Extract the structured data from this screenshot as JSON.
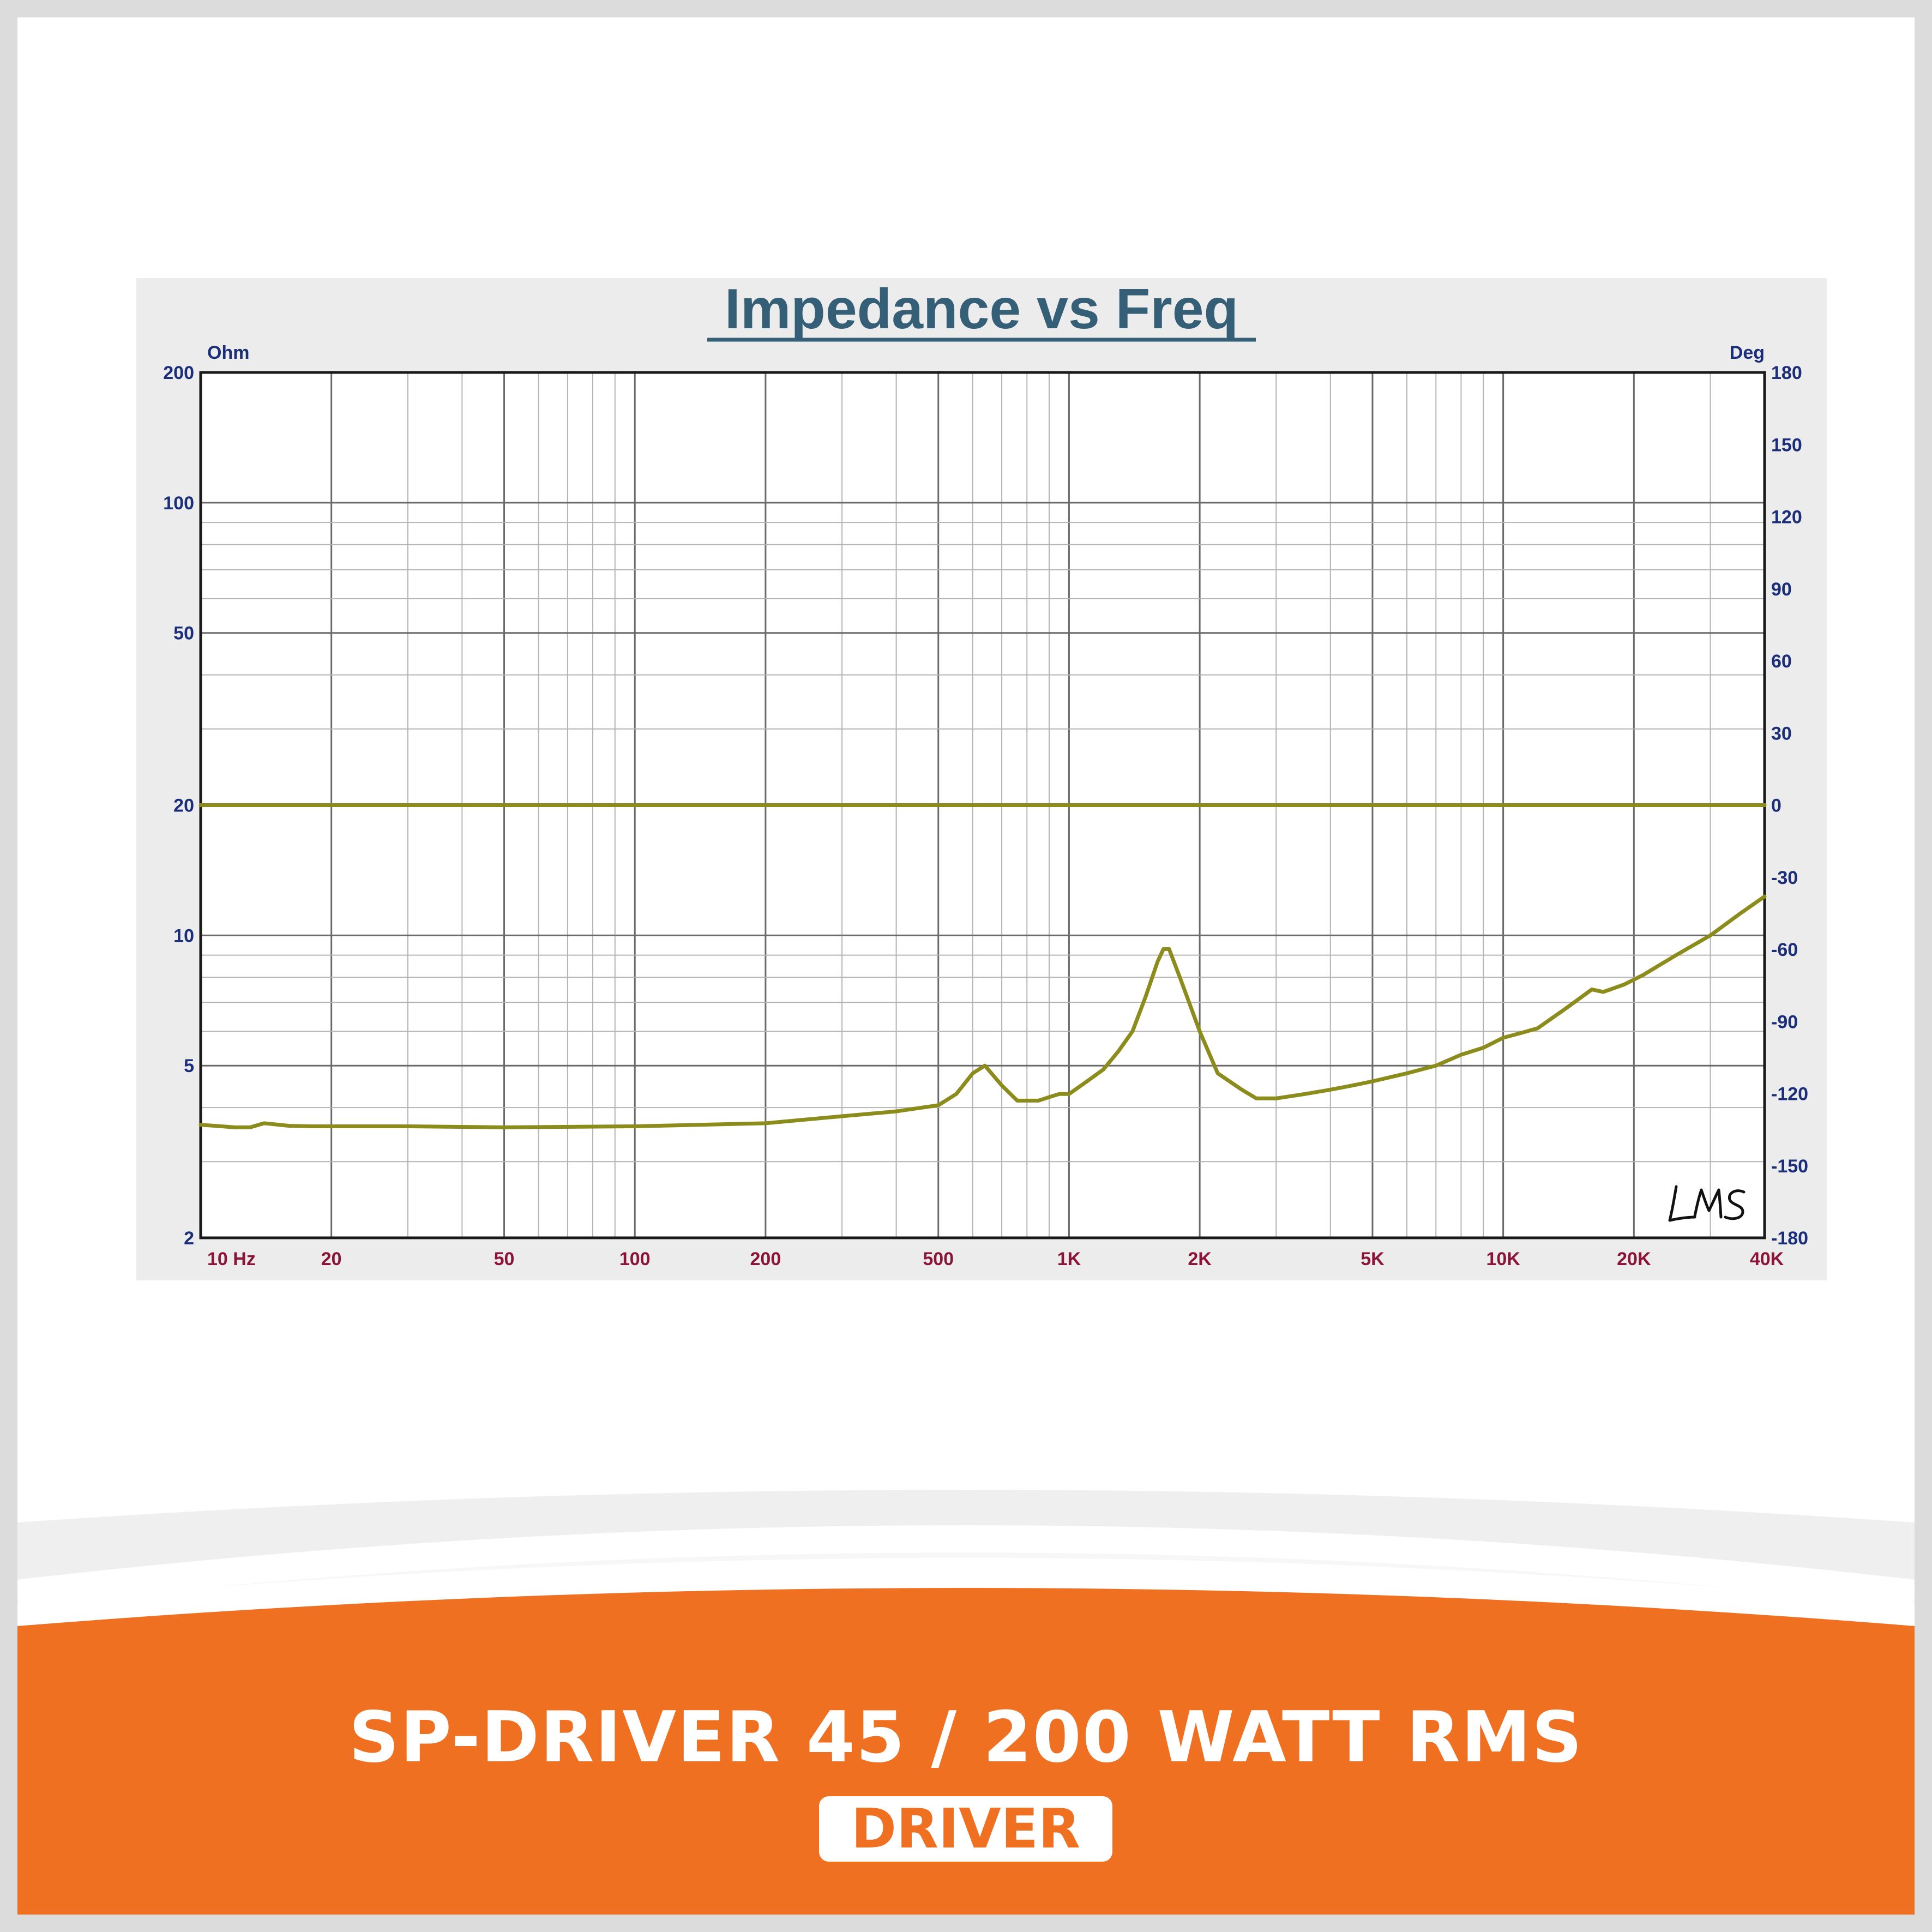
{
  "colors": {
    "accent": "#f07022",
    "curve": "#8c8c1c",
    "axis_label": "#1b2e7a",
    "freq_label": "#8a1538",
    "title": "#355f77"
  },
  "chart_data": {
    "type": "line",
    "title": "Impedance vs Freq",
    "left_unit": "Ohm",
    "right_unit": "Deg",
    "x_scale": "log",
    "y_scale": "log",
    "xlim": [
      10,
      40000
    ],
    "ylim": [
      2,
      200
    ],
    "y2lim": [
      -180,
      180
    ],
    "grid": true,
    "x_ticks": [
      {
        "value": 10,
        "label": "10  Hz"
      },
      {
        "value": 20,
        "label": "20"
      },
      {
        "value": 50,
        "label": "50"
      },
      {
        "value": 100,
        "label": "100"
      },
      {
        "value": 200,
        "label": "200"
      },
      {
        "value": 500,
        "label": "500"
      },
      {
        "value": 1000,
        "label": "1K"
      },
      {
        "value": 2000,
        "label": "2K"
      },
      {
        "value": 5000,
        "label": "5K"
      },
      {
        "value": 10000,
        "label": "10K"
      },
      {
        "value": 20000,
        "label": "20K"
      },
      {
        "value": 40000,
        "label": "40K"
      }
    ],
    "y_ticks": [
      {
        "value": 200,
        "label": "200"
      },
      {
        "value": 100,
        "label": "100"
      },
      {
        "value": 50,
        "label": "50"
      },
      {
        "value": 20,
        "label": "20"
      },
      {
        "value": 10,
        "label": "10"
      },
      {
        "value": 5,
        "label": "5"
      },
      {
        "value": 2,
        "label": "2"
      }
    ],
    "y2_ticks": [
      "180",
      "150",
      "120",
      "90",
      "60",
      "30",
      "0",
      "-30",
      "-60",
      "-90",
      "-120",
      "-150",
      "-180"
    ],
    "series": [
      {
        "quantity": "impedance",
        "axis": "left",
        "x": [
          10,
          12,
          13,
          14,
          16,
          18,
          20,
          30,
          50,
          100,
          200,
          300,
          400,
          500,
          550,
          600,
          640,
          700,
          760,
          850,
          900,
          950,
          1000,
          1100,
          1200,
          1300,
          1400,
          1500,
          1600,
          1650,
          1700,
          1800,
          2000,
          2200,
          2500,
          2700,
          3000,
          3500,
          4000,
          4500,
          5000,
          6000,
          7000,
          8000,
          9000,
          10000,
          11000,
          12000,
          14000,
          16000,
          17000,
          19000,
          21000,
          25000,
          30000,
          35000,
          40000
        ],
        "y": [
          3.65,
          3.6,
          3.6,
          3.68,
          3.63,
          3.62,
          3.62,
          3.62,
          3.6,
          3.62,
          3.68,
          3.82,
          3.92,
          4.05,
          4.3,
          4.8,
          5.0,
          4.5,
          4.15,
          4.15,
          4.23,
          4.3,
          4.3,
          4.6,
          4.9,
          5.4,
          6.0,
          7.2,
          8.7,
          9.3,
          9.3,
          8.0,
          6.0,
          4.8,
          4.4,
          4.2,
          4.2,
          4.3,
          4.4,
          4.5,
          4.6,
          4.8,
          5.0,
          5.3,
          5.5,
          5.8,
          5.95,
          6.1,
          6.8,
          7.5,
          7.4,
          7.7,
          8.1,
          9.0,
          10.0,
          11.2,
          12.3
        ]
      },
      {
        "quantity": "phase",
        "axis": "right",
        "x": [
          10,
          40000
        ],
        "y": [
          0,
          0
        ]
      }
    ]
  },
  "product": {
    "title": "SP-DRIVER 45 / 200 WATT RMS",
    "badge": "DRIVER"
  }
}
